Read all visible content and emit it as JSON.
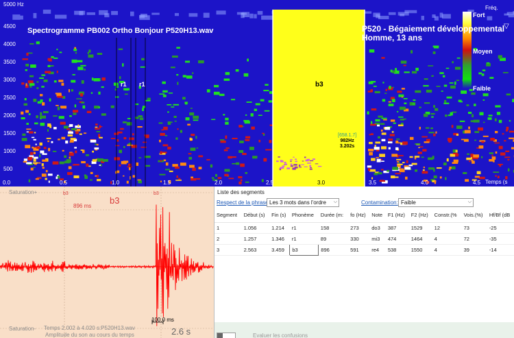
{
  "spectrogram": {
    "title": "Spectrogramme PB002 Ortho Bonjour P520H13.wav",
    "title2_line1": "P520 -  Bégaiement développemental",
    "title2_line2": "Homme, 13 ans",
    "freq_top": "5000 Hz",
    "y_ticks": [
      "4500",
      "4000",
      "3500",
      "3000",
      "2500",
      "2000",
      "1500",
      "1000",
      "500"
    ],
    "x_ticks": [
      "0.0",
      "0.5",
      "1.0",
      "1.5",
      "2.0",
      "2.5",
      "3.0",
      "3.5",
      "4.0",
      "4.5"
    ],
    "segments": [
      {
        "label": "r1"
      },
      {
        "label": "r1"
      }
    ],
    "selected_segment": "b3",
    "cursor_readout": {
      "line1": "[658.1.7]",
      "freq": "982Hz",
      "time": "3.202s"
    },
    "legend": {
      "high": "Fort",
      "mid": "Moyen",
      "low": "Faible"
    },
    "freq_axis_label": "Fréq.",
    "time_axis_label": "Temps (s",
    "colors": {
      "background": "#1c14c8",
      "selection": "#ffff1a"
    }
  },
  "waveform": {
    "saturation_top": "Saturation+",
    "saturation_bottom": "Saturation-",
    "marker_left": "b3",
    "marker_right": "b3",
    "duration": "896 ms",
    "segment_label": "b3",
    "time_range": "Temps 2.002 à 4.020 s:P520H13.wav",
    "caption": "Amplitude du son au cours du temps",
    "scale": "100.0 ms",
    "time_value": "2.6 s",
    "colors": {
      "background": "#f9dfc8",
      "signal": "#ff0000"
    }
  },
  "segments_panel": {
    "title": "Liste des segments",
    "respect_label": "Respect de la phrase:",
    "respect_value": "Les 3 mots dans l'ordre",
    "contamination_label": "Contamination:",
    "contamination_value": "Faible",
    "columns": [
      "Segment",
      "Début (s)",
      "Fin (s)",
      "Phonème",
      "Durée (m:",
      "fo (Hz)",
      "Note",
      "F1 (Hz)",
      "F2 (Hz)",
      "Constr.(%",
      "Vois.(%)",
      "Hf/Bf (dB"
    ],
    "rows": [
      [
        "1",
        "1.056",
        "1.214",
        "r1",
        "158",
        "273",
        "do3",
        "387",
        "1529",
        "12",
        "73",
        "-25"
      ],
      [
        "2",
        "1.257",
        "1.346",
        "r1",
        "89",
        "330",
        "mi3",
        "474",
        "1464",
        "4",
        "72",
        "-35"
      ],
      [
        "3",
        "2.563",
        "3.459",
        "b3",
        "896",
        "591",
        "re4",
        "538",
        "1550",
        "4",
        "39",
        "-14"
      ]
    ],
    "evaluate_button": "Evaluer les confusions"
  }
}
